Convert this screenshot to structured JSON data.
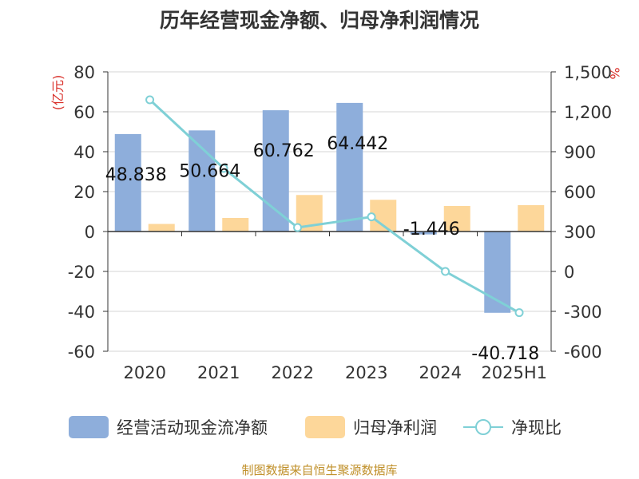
{
  "title": "历年经营现金净额、归母净利润情况",
  "source_note": "制图数据来自恒生聚源数据库",
  "colors": {
    "bar_cash": "#8eaedb",
    "bar_profit": "#fdd79a",
    "line_ratio": "#7fd0d6",
    "left_unit": "#d9302a",
    "right_unit": "#d9302a",
    "source": "#c0902a"
  },
  "chart_data": {
    "type": "bar",
    "title": "历年经营现金净额、归母净利润情况",
    "categories": [
      "2020",
      "2021",
      "2022",
      "2023",
      "2024",
      "2025H1"
    ],
    "y_left": {
      "label": "(亿元)",
      "ylim": [
        -60,
        80
      ],
      "ticks": [
        "80",
        "60",
        "40",
        "20",
        "0",
        "-20",
        "-40",
        "-60"
      ],
      "tick_values": [
        80,
        60,
        40,
        20,
        0,
        -20,
        -40,
        -60
      ]
    },
    "y_right": {
      "label": "%",
      "ylim": [
        -600,
        1500
      ],
      "ticks": [
        "1,500",
        "1,200",
        "900",
        "600",
        "300",
        "0",
        "-300",
        "-600"
      ],
      "tick_values": [
        1500,
        1200,
        900,
        600,
        300,
        0,
        -300,
        -600
      ]
    },
    "series": [
      {
        "name": "经营活动现金流净额",
        "type": "bar",
        "axis": "left",
        "values": [
          48.838,
          50.664,
          60.762,
          64.442,
          -1.446,
          -40.718
        ],
        "labels": [
          "48.838",
          "50.664",
          "60.762",
          "64.442",
          "-1.446",
          "-40.718"
        ]
      },
      {
        "name": "归母净利润",
        "type": "bar",
        "axis": "left",
        "values": [
          3.8,
          6.8,
          18.3,
          15.9,
          12.8,
          13.2
        ]
      },
      {
        "name": "净现比",
        "type": "line",
        "axis": "right",
        "values": [
          1290,
          775,
          330,
          410,
          0,
          -310
        ]
      }
    ],
    "legend": "bottom",
    "grid": true
  }
}
